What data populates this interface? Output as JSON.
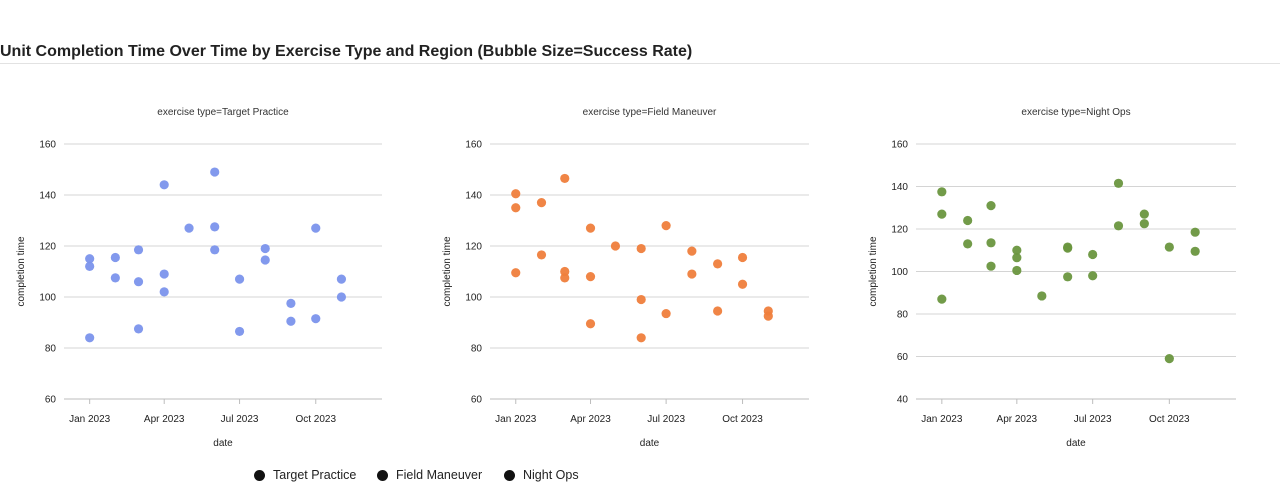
{
  "title": "Unit Completion Time Over Time by Exercise Type and Region (Bubble Size=Success Rate)",
  "legend": {
    "items": [
      {
        "label": "Target Practice"
      },
      {
        "label": "Field Maneuver"
      },
      {
        "label": "Night Ops"
      }
    ]
  },
  "chart_data": [
    {
      "type": "scatter",
      "title": "exercise type=Target Practice",
      "xlabel": "date",
      "ylabel": "completion time",
      "color": "#7b93ec",
      "xlim": [
        "2022-12-01",
        "2023-12-20"
      ],
      "ylim": [
        60,
        160
      ],
      "yticks": [
        60,
        80,
        100,
        120,
        140,
        160
      ],
      "xticks": [
        {
          "date": "2023-01-01",
          "label": "Jan 2023"
        },
        {
          "date": "2023-04-01",
          "label": "Apr 2023"
        },
        {
          "date": "2023-07-01",
          "label": "Jul 2023"
        },
        {
          "date": "2023-10-01",
          "label": "Oct 2023"
        }
      ],
      "grid": true,
      "points": [
        {
          "x": "2023-01-01",
          "y": 115
        },
        {
          "x": "2023-01-01",
          "y": 112
        },
        {
          "x": "2023-01-01",
          "y": 84
        },
        {
          "x": "2023-02-01",
          "y": 115.5
        },
        {
          "x": "2023-02-01",
          "y": 107.5
        },
        {
          "x": "2023-03-01",
          "y": 118.5
        },
        {
          "x": "2023-03-01",
          "y": 106
        },
        {
          "x": "2023-03-01",
          "y": 87.5
        },
        {
          "x": "2023-04-01",
          "y": 144
        },
        {
          "x": "2023-04-01",
          "y": 109
        },
        {
          "x": "2023-04-01",
          "y": 102
        },
        {
          "x": "2023-05-01",
          "y": 127
        },
        {
          "x": "2023-06-01",
          "y": 149
        },
        {
          "x": "2023-06-01",
          "y": 127.5
        },
        {
          "x": "2023-06-01",
          "y": 118.5
        },
        {
          "x": "2023-07-01",
          "y": 107
        },
        {
          "x": "2023-07-01",
          "y": 86.5
        },
        {
          "x": "2023-08-01",
          "y": 119
        },
        {
          "x": "2023-08-01",
          "y": 114.5
        },
        {
          "x": "2023-09-01",
          "y": 97.5
        },
        {
          "x": "2023-09-01",
          "y": 90.5
        },
        {
          "x": "2023-10-01",
          "y": 127
        },
        {
          "x": "2023-10-01",
          "y": 91.5
        },
        {
          "x": "2023-11-01",
          "y": 107
        },
        {
          "x": "2023-11-01",
          "y": 100
        }
      ]
    },
    {
      "type": "scatter",
      "title": "exercise type=Field Maneuver",
      "xlabel": "date",
      "ylabel": "completion time",
      "color": "#ef7e3c",
      "xlim": [
        "2022-12-01",
        "2023-12-20"
      ],
      "ylim": [
        60,
        160
      ],
      "yticks": [
        60,
        80,
        100,
        120,
        140,
        160
      ],
      "xticks": [
        {
          "date": "2023-01-01",
          "label": "Jan 2023"
        },
        {
          "date": "2023-04-01",
          "label": "Apr 2023"
        },
        {
          "date": "2023-07-01",
          "label": "Jul 2023"
        },
        {
          "date": "2023-10-01",
          "label": "Oct 2023"
        }
      ],
      "grid": true,
      "points": [
        {
          "x": "2023-01-01",
          "y": 140.5
        },
        {
          "x": "2023-01-01",
          "y": 135
        },
        {
          "x": "2023-01-01",
          "y": 109.5
        },
        {
          "x": "2023-02-01",
          "y": 137
        },
        {
          "x": "2023-02-01",
          "y": 116.5
        },
        {
          "x": "2023-03-01",
          "y": 146.5
        },
        {
          "x": "2023-03-01",
          "y": 110
        },
        {
          "x": "2023-03-01",
          "y": 107.5
        },
        {
          "x": "2023-04-01",
          "y": 127
        },
        {
          "x": "2023-04-01",
          "y": 108
        },
        {
          "x": "2023-04-01",
          "y": 89.5
        },
        {
          "x": "2023-05-01",
          "y": 120
        },
        {
          "x": "2023-06-01",
          "y": 119
        },
        {
          "x": "2023-06-01",
          "y": 99
        },
        {
          "x": "2023-06-01",
          "y": 84
        },
        {
          "x": "2023-07-01",
          "y": 128
        },
        {
          "x": "2023-07-01",
          "y": 93.5
        },
        {
          "x": "2023-08-01",
          "y": 118
        },
        {
          "x": "2023-08-01",
          "y": 109
        },
        {
          "x": "2023-09-01",
          "y": 113
        },
        {
          "x": "2023-09-01",
          "y": 94.5
        },
        {
          "x": "2023-10-01",
          "y": 115.5
        },
        {
          "x": "2023-10-01",
          "y": 105
        },
        {
          "x": "2023-11-01",
          "y": 94.5
        },
        {
          "x": "2023-11-01",
          "y": 92.5
        }
      ]
    },
    {
      "type": "scatter",
      "title": "exercise type=Night Ops",
      "xlabel": "date",
      "ylabel": "completion time",
      "color": "#6a963f",
      "xlim": [
        "2022-12-01",
        "2023-12-20"
      ],
      "ylim": [
        40,
        160
      ],
      "yticks": [
        40,
        60,
        80,
        100,
        120,
        140,
        160
      ],
      "xticks": [
        {
          "date": "2023-01-01",
          "label": "Jan 2023"
        },
        {
          "date": "2023-04-01",
          "label": "Apr 2023"
        },
        {
          "date": "2023-07-01",
          "label": "Jul 2023"
        },
        {
          "date": "2023-10-01",
          "label": "Oct 2023"
        }
      ],
      "grid": true,
      "points": [
        {
          "x": "2023-01-01",
          "y": 137.5
        },
        {
          "x": "2023-01-01",
          "y": 127
        },
        {
          "x": "2023-01-01",
          "y": 87
        },
        {
          "x": "2023-02-01",
          "y": 124
        },
        {
          "x": "2023-02-01",
          "y": 113
        },
        {
          "x": "2023-03-01",
          "y": 131
        },
        {
          "x": "2023-03-01",
          "y": 113.5
        },
        {
          "x": "2023-03-01",
          "y": 102.5
        },
        {
          "x": "2023-04-01",
          "y": 110
        },
        {
          "x": "2023-04-01",
          "y": 106.5
        },
        {
          "x": "2023-04-01",
          "y": 100.5
        },
        {
          "x": "2023-05-01",
          "y": 88.5
        },
        {
          "x": "2023-06-01",
          "y": 111
        },
        {
          "x": "2023-06-01",
          "y": 111.5
        },
        {
          "x": "2023-06-01",
          "y": 97.5
        },
        {
          "x": "2023-07-01",
          "y": 108
        },
        {
          "x": "2023-07-01",
          "y": 98
        },
        {
          "x": "2023-08-01",
          "y": 141.5
        },
        {
          "x": "2023-08-01",
          "y": 121.5
        },
        {
          "x": "2023-09-01",
          "y": 127
        },
        {
          "x": "2023-09-01",
          "y": 122.5
        },
        {
          "x": "2023-10-01",
          "y": 111.5
        },
        {
          "x": "2023-10-01",
          "y": 59
        },
        {
          "x": "2023-11-01",
          "y": 118.5
        },
        {
          "x": "2023-11-01",
          "y": 109.5
        }
      ]
    }
  ]
}
